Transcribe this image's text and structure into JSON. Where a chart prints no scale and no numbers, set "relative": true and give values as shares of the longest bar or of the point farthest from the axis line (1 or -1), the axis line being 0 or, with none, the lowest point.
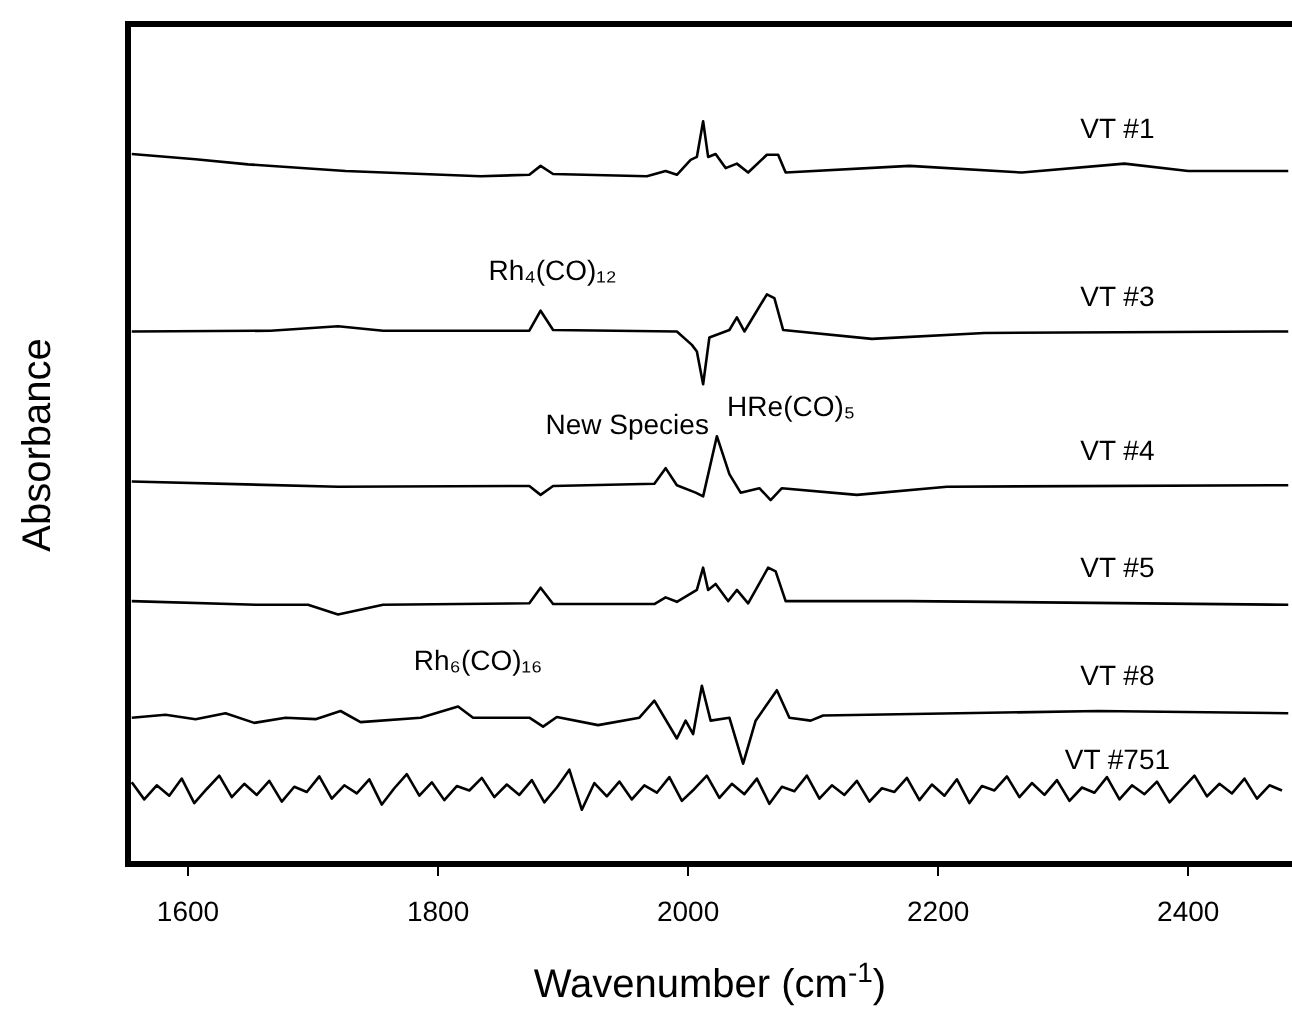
{
  "chart_data": {
    "type": "line",
    "xlabel": "Wavenumber (cm$^{-1}$)",
    "ylabel": "Absorbance",
    "relative": true,
    "xlim": [
      1552,
      2483
    ],
    "xticks": [
      1600,
      1800,
      2000,
      2200,
      2400
    ],
    "grid": false,
    "legend": false,
    "marker": "none",
    "line_style": "solid",
    "annotations": [
      {
        "text": "Rh₄(CO)₁₂",
        "x": 1882,
        "y": 0.745
      },
      {
        "text": "HRe(CO)₅",
        "x": 2012,
        "y": 0.646
      },
      {
        "text": "New Species",
        "x": 2023,
        "y": 0.576
      },
      {
        "text": "Rh₆(CO)₁₆",
        "x": 1816,
        "y": 0.212
      }
    ],
    "series": [
      {
        "name": "VT #1",
        "color": "#000000",
        "x": [
          1555,
          1606,
          1648,
          1726,
          1834,
          1873,
          1882,
          1892,
          1967,
          1982,
          1991,
          2002,
          2007,
          2012,
          2016,
          2022,
          2030,
          2039,
          2048,
          2063,
          2072,
          2078,
          2177,
          2267,
          2349,
          2400,
          2480
        ],
        "values": [
          0.956,
          0.949,
          0.942,
          0.933,
          0.926,
          0.928,
          0.94,
          0.929,
          0.926,
          0.933,
          0.928,
          0.948,
          0.952,
          1,
          0.952,
          0.956,
          0.937,
          0.943,
          0.931,
          0.955,
          0.955,
          0.931,
          0.94,
          0.931,
          0.943,
          0.933,
          0.933
        ]
      },
      {
        "name": "VT #3",
        "color": "#000000",
        "x": [
          1555,
          1666,
          1720,
          1756,
          1873,
          1882,
          1892,
          1991,
          2003,
          2007,
          2012,
          2017,
          2033,
          2039,
          2045,
          2063,
          2069,
          2076,
          2147,
          2237,
          2480
        ],
        "values": [
          0.717,
          0.718,
          0.724,
          0.718,
          0.718,
          0.745,
          0.719,
          0.717,
          0.699,
          0.69,
          0.646,
          0.709,
          0.719,
          0.736,
          0.717,
          0.767,
          0.762,
          0.719,
          0.707,
          0.715,
          0.717
        ]
      },
      {
        "name": "VT #4",
        "color": "#000000",
        "x": [
          1555,
          1720,
          1873,
          1882,
          1892,
          1973,
          1982,
          1991,
          2006,
          2012,
          2023,
          2033,
          2042,
          2057,
          2066,
          2075,
          2135,
          2207,
          2480
        ],
        "values": [
          0.515,
          0.508,
          0.509,
          0.497,
          0.509,
          0.512,
          0.533,
          0.51,
          0.5,
          0.495,
          0.576,
          0.525,
          0.5,
          0.506,
          0.49,
          0.506,
          0.497,
          0.508,
          0.51
        ]
      },
      {
        "name": "VT #5",
        "color": "#000000",
        "x": [
          1555,
          1654,
          1696,
          1720,
          1756,
          1873,
          1882,
          1892,
          1973,
          1982,
          1991,
          2002,
          2007,
          2012,
          2016,
          2022,
          2032,
          2039,
          2048,
          2064,
          2070,
          2078,
          2177,
          2480
        ],
        "values": [
          0.354,
          0.349,
          0.349,
          0.336,
          0.349,
          0.351,
          0.372,
          0.35,
          0.35,
          0.359,
          0.353,
          0.364,
          0.369,
          0.399,
          0.369,
          0.377,
          0.354,
          0.369,
          0.351,
          0.399,
          0.394,
          0.354,
          0.354,
          0.349
        ]
      },
      {
        "name": "VT #8",
        "color": "#000000",
        "x": [
          1555,
          1582,
          1606,
          1630,
          1653,
          1678,
          1702,
          1722,
          1738,
          1786,
          1816,
          1828,
          1873,
          1884,
          1895,
          1928,
          1961,
          1973,
          1991,
          1998,
          2004,
          2011,
          2018,
          2033,
          2044,
          2054,
          2071,
          2081,
          2098,
          2108,
          2328,
          2480
        ],
        "values": [
          0.197,
          0.201,
          0.195,
          0.203,
          0.19,
          0.197,
          0.195,
          0.206,
          0.191,
          0.197,
          0.212,
          0.197,
          0.197,
          0.185,
          0.198,
          0.187,
          0.197,
          0.22,
          0.169,
          0.193,
          0.175,
          0.24,
          0.193,
          0.197,
          0.135,
          0.193,
          0.234,
          0.197,
          0.193,
          0.2,
          0.206,
          0.203
        ]
      },
      {
        "name": "VT #751",
        "color": "#000000",
        "x": [
          1555,
          1565,
          1575,
          1585,
          1595,
          1605,
          1615,
          1625,
          1635,
          1645,
          1655,
          1665,
          1675,
          1685,
          1695,
          1705,
          1715,
          1725,
          1735,
          1745,
          1755,
          1765,
          1775,
          1785,
          1795,
          1805,
          1815,
          1825,
          1835,
          1845,
          1855,
          1865,
          1875,
          1885,
          1895,
          1905,
          1915,
          1925,
          1935,
          1945,
          1955,
          1965,
          1975,
          1985,
          1995,
          2005,
          2015,
          2025,
          2035,
          2045,
          2055,
          2065,
          2075,
          2085,
          2095,
          2105,
          2115,
          2125,
          2135,
          2145,
          2155,
          2165,
          2175,
          2185,
          2195,
          2205,
          2215,
          2225,
          2235,
          2245,
          2255,
          2265,
          2275,
          2285,
          2295,
          2305,
          2315,
          2325,
          2335,
          2345,
          2355,
          2365,
          2375,
          2385,
          2395,
          2405,
          2415,
          2425,
          2435,
          2445,
          2455,
          2465,
          2475
        ],
        "values": [
          0.11,
          0.087,
          0.106,
          0.092,
          0.115,
          0.082,
          0.101,
          0.119,
          0.09,
          0.108,
          0.093,
          0.112,
          0.084,
          0.104,
          0.097,
          0.118,
          0.088,
          0.106,
          0.095,
          0.114,
          0.08,
          0.102,
          0.121,
          0.092,
          0.11,
          0.086,
          0.105,
          0.099,
          0.116,
          0.09,
          0.107,
          0.093,
          0.113,
          0.083,
          0.103,
          0.127,
          0.073,
          0.109,
          0.091,
          0.111,
          0.087,
          0.106,
          0.096,
          0.117,
          0.085,
          0.101,
          0.119,
          0.089,
          0.108,
          0.094,
          0.115,
          0.081,
          0.104,
          0.098,
          0.119,
          0.088,
          0.106,
          0.093,
          0.112,
          0.084,
          0.102,
          0.097,
          0.116,
          0.086,
          0.107,
          0.092,
          0.114,
          0.082,
          0.105,
          0.099,
          0.118,
          0.09,
          0.109,
          0.093,
          0.113,
          0.085,
          0.103,
          0.096,
          0.117,
          0.087,
          0.106,
          0.094,
          0.111,
          0.083,
          0.101,
          0.119,
          0.091,
          0.108,
          0.095,
          0.115,
          0.088,
          0.106,
          0.099
        ]
      }
    ]
  }
}
